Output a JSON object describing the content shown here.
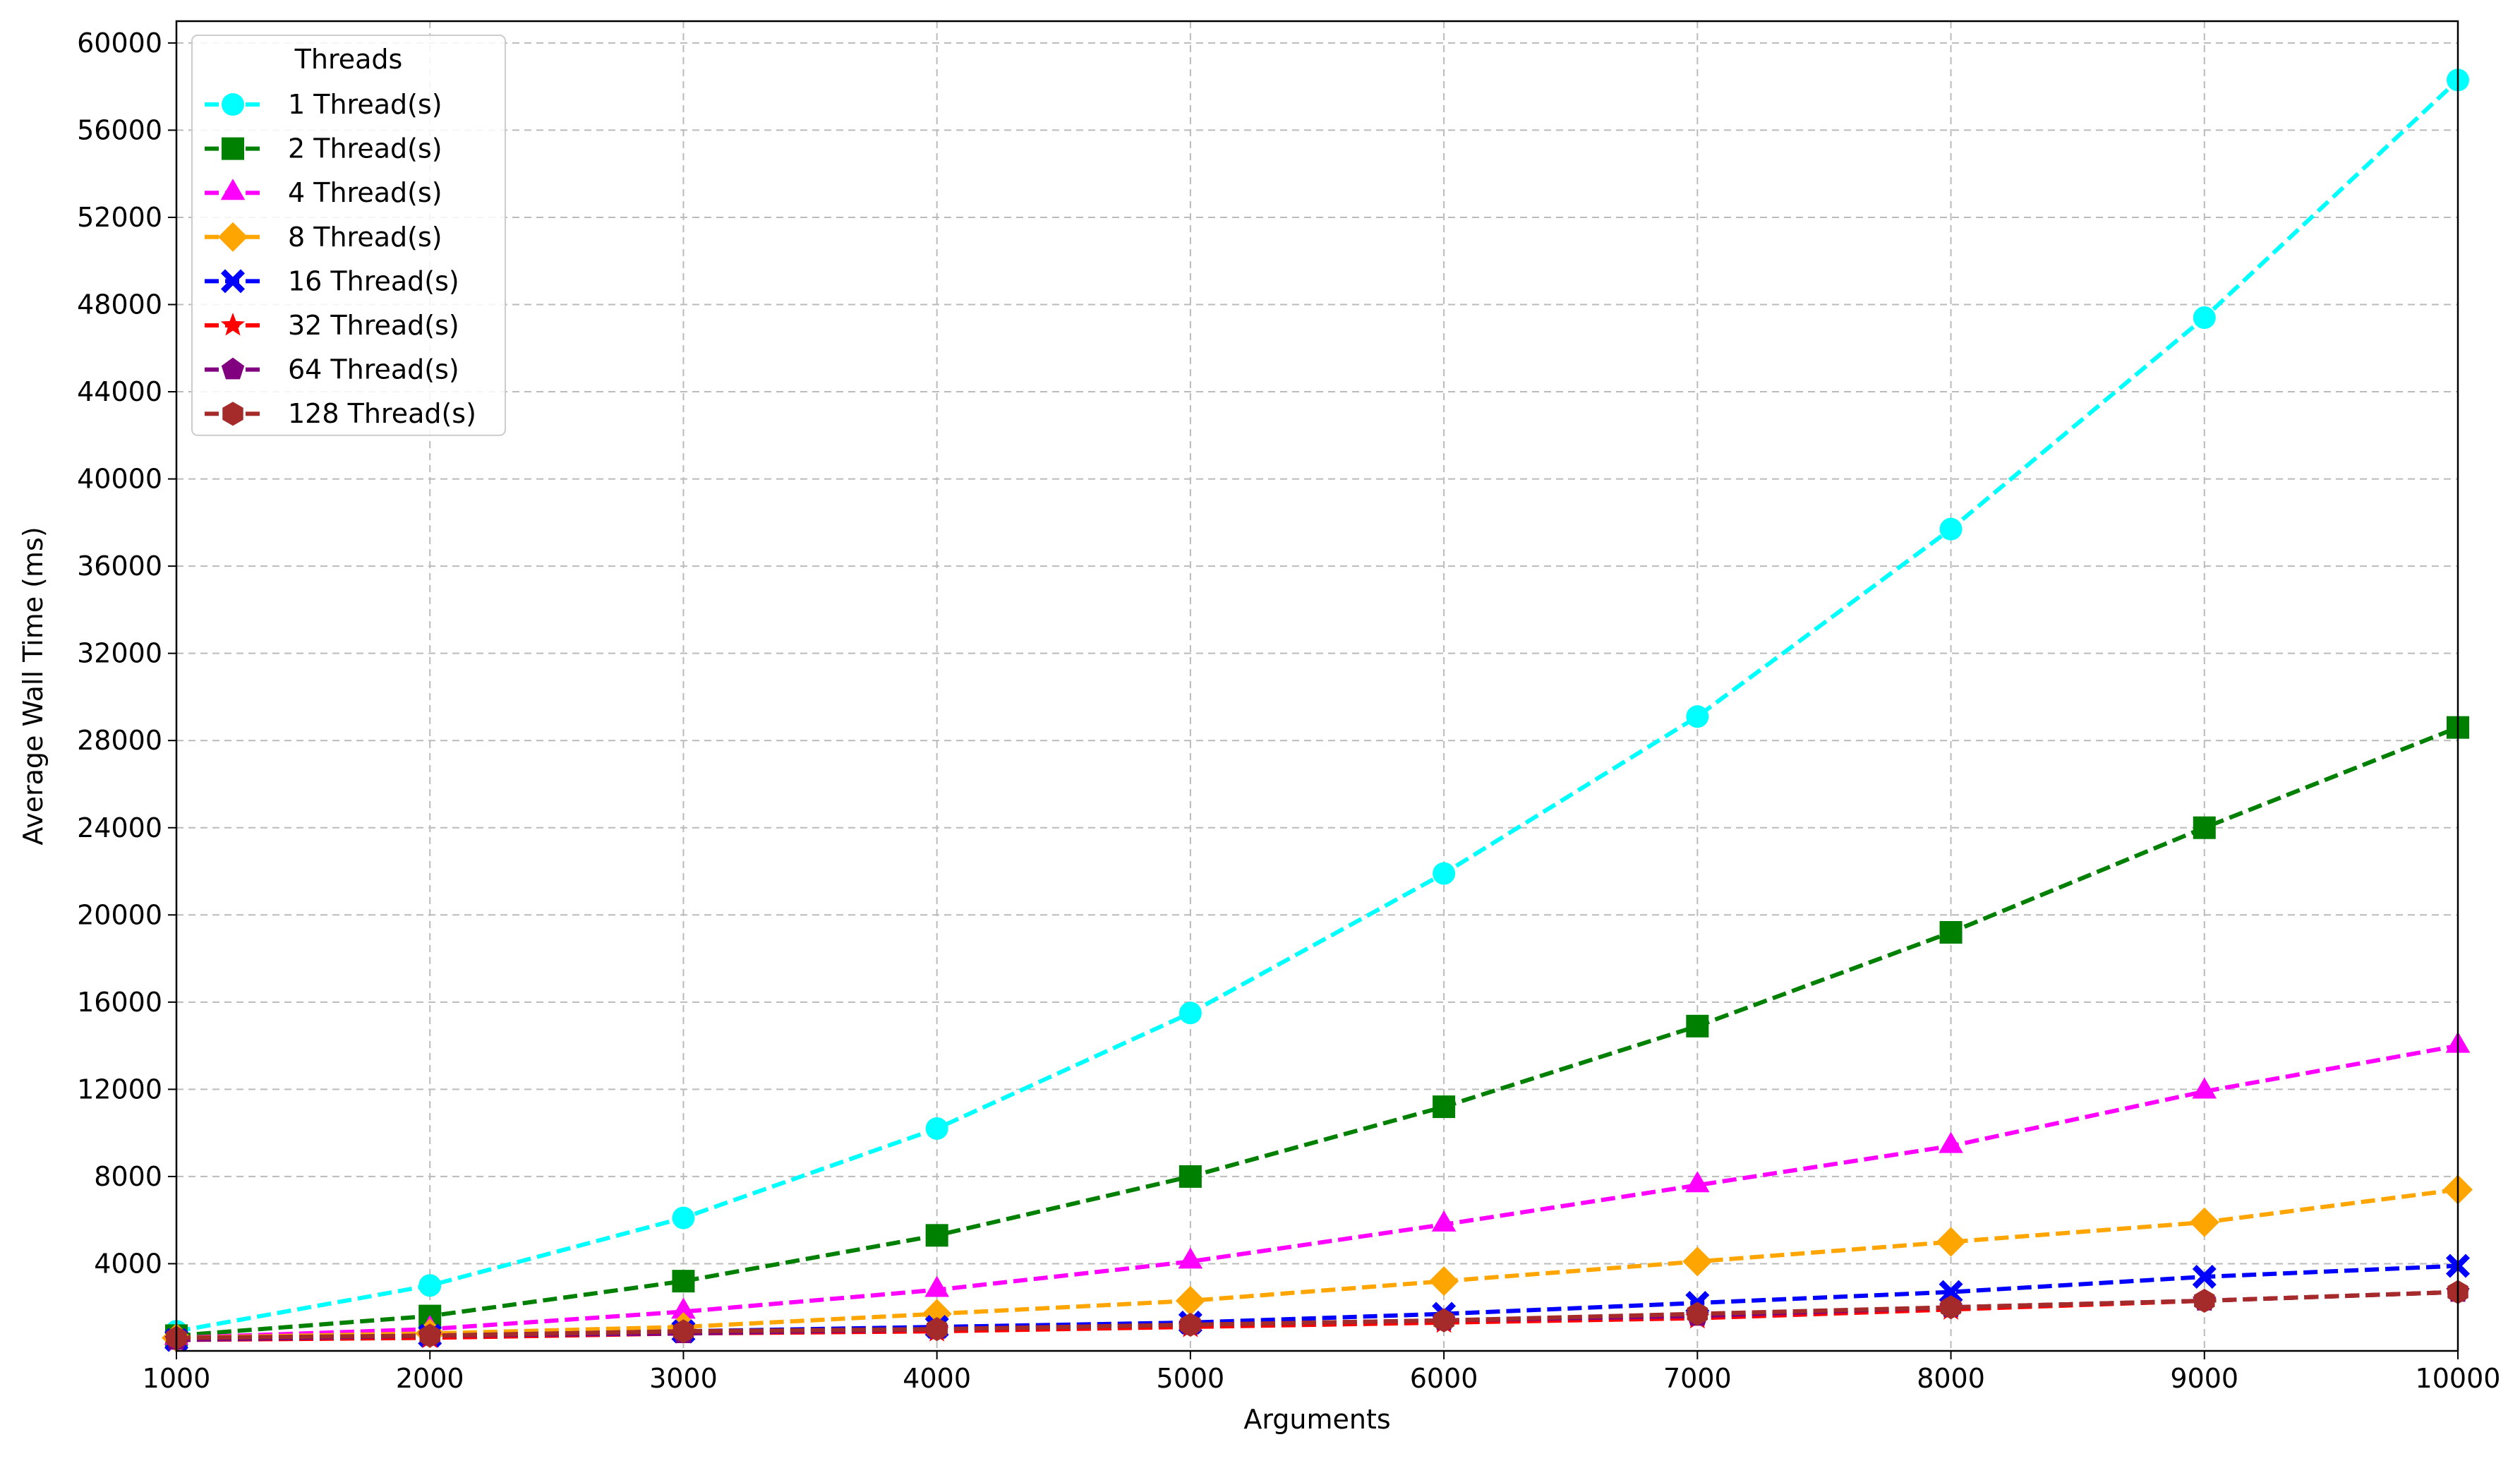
{
  "chart_data": {
    "type": "line",
    "title": "",
    "xlabel": "Arguments",
    "ylabel": "Average Wall Time (ms)",
    "xlim": [
      1000,
      10000
    ],
    "ylim": [
      0,
      61000
    ],
    "x_ticks": [
      1000,
      2000,
      3000,
      4000,
      5000,
      6000,
      7000,
      8000,
      9000,
      10000
    ],
    "y_ticks": [
      4000,
      8000,
      12000,
      16000,
      20000,
      24000,
      28000,
      32000,
      36000,
      40000,
      44000,
      48000,
      52000,
      56000,
      60000
    ],
    "grid": true,
    "legend_title": "Threads",
    "legend_position": "top-left",
    "x": [
      1000,
      2000,
      3000,
      4000,
      5000,
      6000,
      7000,
      8000,
      9000,
      10000
    ],
    "series": [
      {
        "name": "1 Thread(s)",
        "color": "#00ffff",
        "marker": "circle",
        "values": [
          900,
          3000,
          6100,
          10200,
          15500,
          21900,
          29100,
          37700,
          47400,
          58300
        ]
      },
      {
        "name": "2 Thread(s)",
        "color": "#008000",
        "marker": "square",
        "values": [
          700,
          1600,
          3200,
          5300,
          8000,
          11200,
          14900,
          19200,
          24000,
          28600
        ]
      },
      {
        "name": "4 Thread(s)",
        "color": "#ff00ff",
        "marker": "triangle",
        "values": [
          600,
          1000,
          1800,
          2800,
          4100,
          5800,
          7600,
          9400,
          11900,
          14000
        ]
      },
      {
        "name": "8 Thread(s)",
        "color": "#ffa500",
        "marker": "diamond",
        "values": [
          600,
          800,
          1100,
          1700,
          2300,
          3200,
          4100,
          5000,
          5900,
          7400
        ]
      },
      {
        "name": "16 Thread(s)",
        "color": "#0000ff",
        "marker": "x",
        "values": [
          500,
          700,
          900,
          1100,
          1300,
          1700,
          2200,
          2700,
          3400,
          3900
        ]
      },
      {
        "name": "32 Thread(s)",
        "color": "#ff0000",
        "marker": "star",
        "values": [
          500,
          600,
          800,
          900,
          1100,
          1300,
          1500,
          1900,
          2300,
          2700
        ]
      },
      {
        "name": "64 Thread(s)",
        "color": "#800080",
        "marker": "pentagon",
        "values": [
          500,
          700,
          800,
          1000,
          1200,
          1400,
          1600,
          2000,
          2300,
          2700
        ]
      },
      {
        "name": "128 Thread(s)",
        "color": "#a52a2a",
        "marker": "hexagon",
        "values": [
          600,
          700,
          900,
          1000,
          1200,
          1400,
          1700,
          2000,
          2300,
          2700
        ]
      }
    ]
  }
}
